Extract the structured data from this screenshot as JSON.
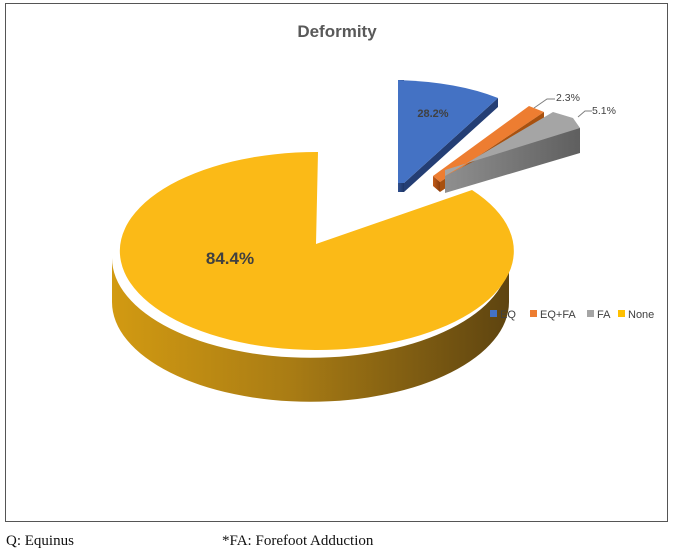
{
  "chart_data": {
    "type": "pie",
    "title": "Deformity",
    "categories": [
      "EQ",
      "EQ+FA",
      "FA",
      "None"
    ],
    "values": [
      28.2,
      2.3,
      5.1,
      84.4
    ],
    "data_labels": [
      "28.2%",
      "2.3%",
      "5.1%",
      "84.4%"
    ],
    "colors": {
      "EQ": "#4472C4",
      "EQ+FA": "#ED7D31",
      "FA": "#A5A5A5",
      "None": "#FFC000"
    },
    "legend_position": "right",
    "style": "3d-exploded"
  },
  "footnotes": {
    "left": "Q: Equinus",
    "right": "*FA: Forefoot Adduction"
  }
}
